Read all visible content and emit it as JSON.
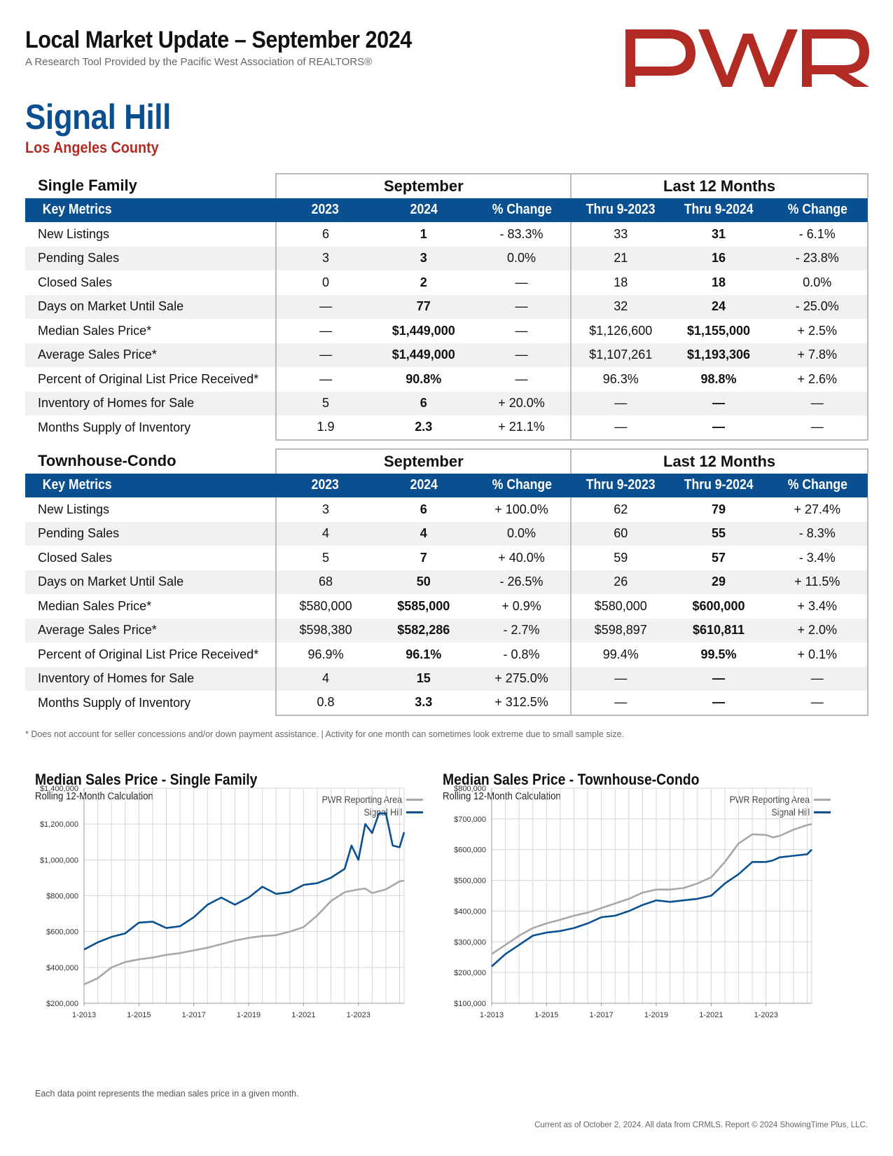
{
  "header": {
    "title": "Local Market Update – September 2024",
    "subtitle": "A Research Tool Provided by the Pacific West Association of REALTORS®",
    "logo_text": "PWR",
    "logo_color": "#b22a24"
  },
  "area": {
    "name": "Signal Hill",
    "county": "Los Angeles County"
  },
  "tables": [
    {
      "title": "Single Family",
      "group_a": "September",
      "group_b": "Last 12 Months",
      "columns": [
        "Key Metrics",
        "2023",
        "2024",
        "% Change",
        "Thru 9-2023",
        "Thru 9-2024",
        "% Change"
      ],
      "rows": [
        [
          "New Listings",
          "6",
          "1",
          "- 83.3%",
          "33",
          "31",
          "- 6.1%"
        ],
        [
          "Pending Sales",
          "3",
          "3",
          "0.0%",
          "21",
          "16",
          "- 23.8%"
        ],
        [
          "Closed Sales",
          "0",
          "2",
          "—",
          "18",
          "18",
          "0.0%"
        ],
        [
          "Days on Market Until Sale",
          "—",
          "77",
          "—",
          "32",
          "24",
          "- 25.0%"
        ],
        [
          "Median Sales Price*",
          "—",
          "$1,449,000",
          "—",
          "$1,126,600",
          "$1,155,000",
          "+ 2.5%"
        ],
        [
          "Average Sales Price*",
          "—",
          "$1,449,000",
          "—",
          "$1,107,261",
          "$1,193,306",
          "+ 7.8%"
        ],
        [
          "Percent of Original List Price Received*",
          "—",
          "90.8%",
          "—",
          "96.3%",
          "98.8%",
          "+ 2.6%"
        ],
        [
          "Inventory of Homes for Sale",
          "5",
          "6",
          "+ 20.0%",
          "—",
          "—",
          "—"
        ],
        [
          "Months Supply of Inventory",
          "1.9",
          "2.3",
          "+ 21.1%",
          "—",
          "—",
          "—"
        ]
      ]
    },
    {
      "title": "Townhouse-Condo",
      "group_a": "September",
      "group_b": "Last 12 Months",
      "columns": [
        "Key Metrics",
        "2023",
        "2024",
        "% Change",
        "Thru 9-2023",
        "Thru 9-2024",
        "% Change"
      ],
      "rows": [
        [
          "New Listings",
          "3",
          "6",
          "+ 100.0%",
          "62",
          "79",
          "+ 27.4%"
        ],
        [
          "Pending Sales",
          "4",
          "4",
          "0.0%",
          "60",
          "55",
          "- 8.3%"
        ],
        [
          "Closed Sales",
          "5",
          "7",
          "+ 40.0%",
          "59",
          "57",
          "- 3.4%"
        ],
        [
          "Days on Market Until Sale",
          "68",
          "50",
          "- 26.5%",
          "26",
          "29",
          "+ 11.5%"
        ],
        [
          "Median Sales Price*",
          "$580,000",
          "$585,000",
          "+ 0.9%",
          "$580,000",
          "$600,000",
          "+ 3.4%"
        ],
        [
          "Average Sales Price*",
          "$598,380",
          "$582,286",
          "- 2.7%",
          "$598,897",
          "$610,811",
          "+ 2.0%"
        ],
        [
          "Percent of Original List Price Received*",
          "96.9%",
          "96.1%",
          "- 0.8%",
          "99.4%",
          "99.5%",
          "+ 0.1%"
        ],
        [
          "Inventory of Homes for Sale",
          "4",
          "15",
          "+ 275.0%",
          "—",
          "—",
          "—"
        ],
        [
          "Months Supply of Inventory",
          "0.8",
          "3.3",
          "+ 312.5%",
          "—",
          "—",
          "—"
        ]
      ]
    }
  ],
  "footnote": "* Does not account for seller concessions and/or down payment assistance. | Activity for one month can sometimes look extreme due to small sample size.",
  "colors": {
    "brand_blue": "#0a5091",
    "reporting_area_gray": "#a8a8a8",
    "alt_row": "#f1f1f1"
  },
  "chart_data": [
    {
      "type": "line",
      "title": "Median Sales Price - Single Family",
      "subtitle": "Rolling 12-Month Calculation",
      "ylim": [
        200000,
        1400000
      ],
      "yticks": [
        200000,
        400000,
        600000,
        800000,
        1000000,
        1200000,
        1400000
      ],
      "ytick_labels": [
        "$200,000",
        "$400,000",
        "$600,000",
        "$800,000",
        "$1,000,000",
        "$1,200,000",
        "$1,400,000"
      ],
      "xlim": [
        "2013-01",
        "2024-09"
      ],
      "xticks": [
        "2013-01",
        "2015-01",
        "2017-01",
        "2019-01",
        "2021-01",
        "2023-01"
      ],
      "xtick_labels": [
        "1-2013",
        "1-2015",
        "1-2017",
        "1-2019",
        "1-2021",
        "1-2023"
      ],
      "grid": true,
      "legend_position": "top-right",
      "series": [
        {
          "name": "PWR Reporting Area",
          "color": "#a8a8a8",
          "points": [
            [
              "2013-01",
              305000
            ],
            [
              "2013-07",
              340000
            ],
            [
              "2014-01",
              400000
            ],
            [
              "2014-07",
              430000
            ],
            [
              "2015-01",
              445000
            ],
            [
              "2015-07",
              455000
            ],
            [
              "2016-01",
              470000
            ],
            [
              "2016-07",
              480000
            ],
            [
              "2017-01",
              495000
            ],
            [
              "2017-07",
              510000
            ],
            [
              "2018-01",
              530000
            ],
            [
              "2018-07",
              550000
            ],
            [
              "2019-01",
              565000
            ],
            [
              "2019-07",
              575000
            ],
            [
              "2020-01",
              580000
            ],
            [
              "2020-07",
              600000
            ],
            [
              "2021-01",
              625000
            ],
            [
              "2021-07",
              690000
            ],
            [
              "2022-01",
              770000
            ],
            [
              "2022-07",
              820000
            ],
            [
              "2023-01",
              835000
            ],
            [
              "2023-04",
              840000
            ],
            [
              "2023-07",
              815000
            ],
            [
              "2024-01",
              835000
            ],
            [
              "2024-07",
              880000
            ],
            [
              "2024-09",
              885000
            ]
          ]
        },
        {
          "name": "Signal Hill",
          "color": "#0a5091",
          "points": [
            [
              "2013-01",
              500000
            ],
            [
              "2013-07",
              540000
            ],
            [
              "2014-01",
              570000
            ],
            [
              "2014-07",
              590000
            ],
            [
              "2015-01",
              650000
            ],
            [
              "2015-07",
              655000
            ],
            [
              "2016-01",
              620000
            ],
            [
              "2016-07",
              630000
            ],
            [
              "2017-01",
              680000
            ],
            [
              "2017-07",
              750000
            ],
            [
              "2018-01",
              790000
            ],
            [
              "2018-07",
              750000
            ],
            [
              "2019-01",
              790000
            ],
            [
              "2019-07",
              850000
            ],
            [
              "2020-01",
              810000
            ],
            [
              "2020-07",
              820000
            ],
            [
              "2021-01",
              860000
            ],
            [
              "2021-07",
              870000
            ],
            [
              "2022-01",
              900000
            ],
            [
              "2022-07",
              950000
            ],
            [
              "2022-10",
              1080000
            ],
            [
              "2023-01",
              1000000
            ],
            [
              "2023-04",
              1200000
            ],
            [
              "2023-07",
              1150000
            ],
            [
              "2023-10",
              1260000
            ],
            [
              "2024-01",
              1260000
            ],
            [
              "2024-04",
              1080000
            ],
            [
              "2024-07",
              1070000
            ],
            [
              "2024-09",
              1155000
            ]
          ]
        }
      ]
    },
    {
      "type": "line",
      "title": "Median Sales Price - Townhouse-Condo",
      "subtitle": "Rolling 12-Month Calculation",
      "ylim": [
        100000,
        800000
      ],
      "yticks": [
        100000,
        200000,
        300000,
        400000,
        500000,
        600000,
        700000,
        800000
      ],
      "ytick_labels": [
        "$100,000",
        "$200,000",
        "$300,000",
        "$400,000",
        "$500,000",
        "$600,000",
        "$700,000",
        "$800,000"
      ],
      "xlim": [
        "2013-01",
        "2024-09"
      ],
      "xticks": [
        "2013-01",
        "2015-01",
        "2017-01",
        "2019-01",
        "2021-01",
        "2023-01"
      ],
      "xtick_labels": [
        "1-2013",
        "1-2015",
        "1-2017",
        "1-2019",
        "1-2021",
        "1-2023"
      ],
      "grid": true,
      "legend_position": "top-right",
      "series": [
        {
          "name": "PWR Reporting Area",
          "color": "#a8a8a8",
          "points": [
            [
              "2013-01",
              260000
            ],
            [
              "2013-07",
              290000
            ],
            [
              "2014-01",
              320000
            ],
            [
              "2014-07",
              345000
            ],
            [
              "2015-01",
              360000
            ],
            [
              "2015-07",
              372000
            ],
            [
              "2016-01",
              385000
            ],
            [
              "2016-07",
              395000
            ],
            [
              "2017-01",
              410000
            ],
            [
              "2017-07",
              425000
            ],
            [
              "2018-01",
              440000
            ],
            [
              "2018-07",
              460000
            ],
            [
              "2019-01",
              470000
            ],
            [
              "2019-07",
              470000
            ],
            [
              "2020-01",
              475000
            ],
            [
              "2020-07",
              490000
            ],
            [
              "2021-01",
              510000
            ],
            [
              "2021-07",
              560000
            ],
            [
              "2022-01",
              620000
            ],
            [
              "2022-07",
              650000
            ],
            [
              "2023-01",
              648000
            ],
            [
              "2023-04",
              640000
            ],
            [
              "2023-07",
              645000
            ],
            [
              "2024-01",
              665000
            ],
            [
              "2024-07",
              680000
            ],
            [
              "2024-09",
              683000
            ]
          ]
        },
        {
          "name": "Signal Hill",
          "color": "#0a5091",
          "points": [
            [
              "2013-01",
              220000
            ],
            [
              "2013-07",
              260000
            ],
            [
              "2014-01",
              290000
            ],
            [
              "2014-07",
              320000
            ],
            [
              "2015-01",
              330000
            ],
            [
              "2015-07",
              335000
            ],
            [
              "2016-01",
              345000
            ],
            [
              "2016-07",
              360000
            ],
            [
              "2017-01",
              380000
            ],
            [
              "2017-07",
              385000
            ],
            [
              "2018-01",
              400000
            ],
            [
              "2018-07",
              420000
            ],
            [
              "2019-01",
              435000
            ],
            [
              "2019-07",
              430000
            ],
            [
              "2020-01",
              435000
            ],
            [
              "2020-07",
              440000
            ],
            [
              "2021-01",
              450000
            ],
            [
              "2021-07",
              490000
            ],
            [
              "2022-01",
              520000
            ],
            [
              "2022-07",
              560000
            ],
            [
              "2023-01",
              560000
            ],
            [
              "2023-04",
              565000
            ],
            [
              "2023-07",
              575000
            ],
            [
              "2024-01",
              580000
            ],
            [
              "2024-07",
              585000
            ],
            [
              "2024-09",
              600000
            ]
          ]
        }
      ]
    }
  ],
  "chart_note": "Each data point represents the median sales price in a given month.",
  "credit": "Current as of October 2, 2024. All data from CRMLS. Report © 2024 ShowingTime Plus, LLC."
}
